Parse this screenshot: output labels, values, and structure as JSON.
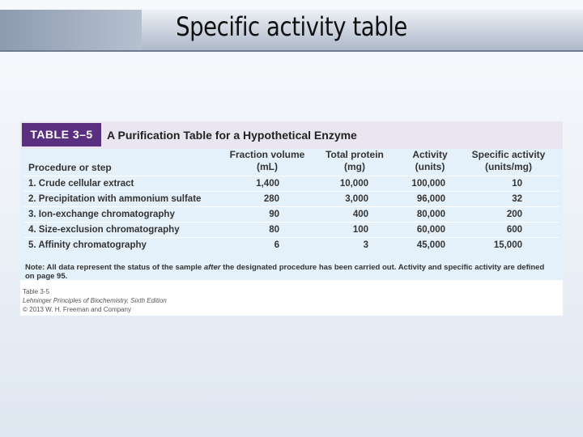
{
  "slide": {
    "title": "Specific activity table"
  },
  "table": {
    "tag": "TABLE 3–5",
    "caption": "A Purification Table for a Hypothetical Enzyme",
    "headers": {
      "step": "Procedure or step",
      "fraction_1": "Fraction volume",
      "fraction_2": "(mL)",
      "protein_1": "Total protein",
      "protein_2": "(mg)",
      "activity_1": "Activity",
      "activity_2": "(units)",
      "specific_1": "Specific activity",
      "specific_2": "(units/mg)"
    },
    "rows": [
      {
        "step": "1. Crude cellular extract",
        "volume": "1,400",
        "protein": "10,000",
        "activity": "100,000",
        "specific": "10"
      },
      {
        "step": "2. Precipitation with ammonium sulfate",
        "volume": "280",
        "protein": "3,000",
        "activity": "96,000",
        "specific": "32"
      },
      {
        "step": "3. Ion-exchange chromatography",
        "volume": "90",
        "protein": "400",
        "activity": "80,000",
        "specific": "200"
      },
      {
        "step": "4. Size-exclusion chromatography",
        "volume": "80",
        "protein": "100",
        "activity": "60,000",
        "specific": "600"
      },
      {
        "step": "5. Affinity chromatography",
        "volume": "6",
        "protein": "3",
        "activity": "45,000",
        "specific": "15,000"
      }
    ],
    "note": {
      "before": "Note: All data represent the status of the sample ",
      "emph": "after",
      "after": " the designated procedure has been carried out. Activity and specific activity are defined on page 95."
    },
    "credit": {
      "line1": "Table 3-5",
      "line2": "Lehninger Principles of Biochemistry, Sixth Edition",
      "line3": "© 2013 W. H. Freeman and Company"
    }
  },
  "colors": {
    "tag_purple": "#5b2f7f",
    "row_blue": "#e5f1fa",
    "caption_band": "#eae6f1"
  }
}
